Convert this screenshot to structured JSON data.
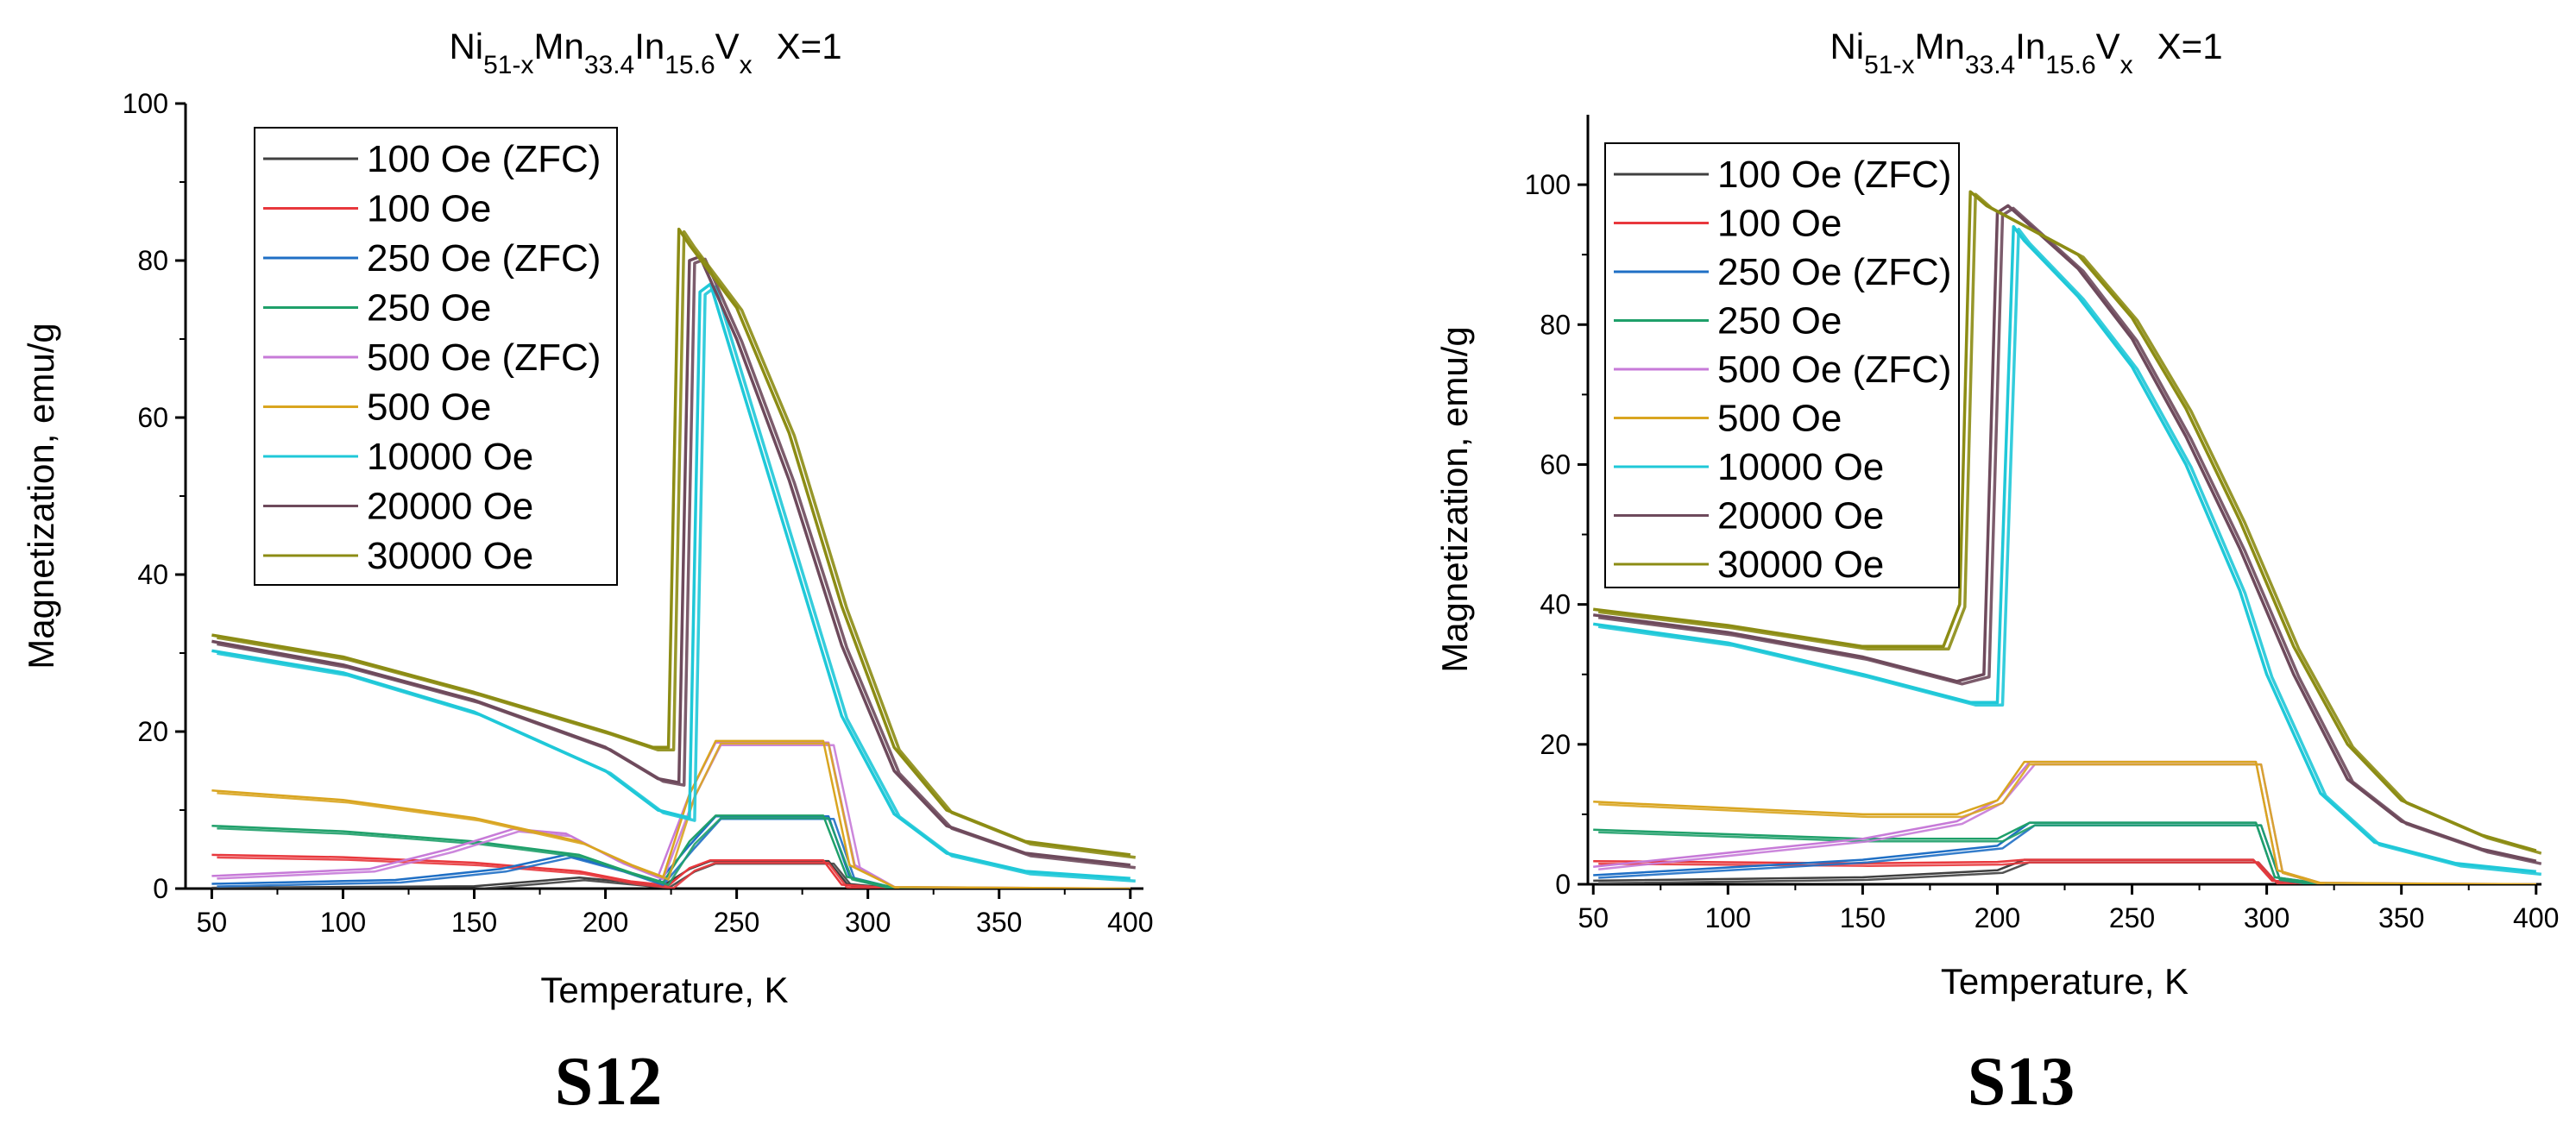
{
  "chart_data": [
    {
      "type": "line",
      "panel_label": "S12",
      "title": {
        "base": [
          "Ni",
          "Mn",
          "In",
          "V"
        ],
        "subs": [
          "51-x",
          "33.4",
          "15.6",
          "x"
        ],
        "suffix": "X=1"
      },
      "xlabel": "Temperature, K",
      "ylabel": "Magnetization, emu/g",
      "xlim": [
        40,
        405
      ],
      "ylim": [
        0,
        100
      ],
      "xticks": [
        50,
        100,
        150,
        200,
        250,
        300,
        350,
        400
      ],
      "yticks": [
        0,
        20,
        40,
        60,
        80,
        100
      ],
      "legend_position": "top-left",
      "series": [
        {
          "name": "100 Oe (ZFC)",
          "color": "#404040",
          "points": [
            [
              50,
              0.1
            ],
            [
              150,
              0.3
            ],
            [
              190,
              1.4
            ],
            [
              210,
              0.8
            ],
            [
              222,
              0.4
            ],
            [
              232,
              2.5
            ],
            [
              240,
              3.5
            ],
            [
              285,
              3.5
            ],
            [
              292,
              0.6
            ],
            [
              310,
              0.05
            ],
            [
              400,
              0
            ]
          ]
        },
        {
          "name": "100 Oe",
          "color": "#e8383d",
          "points": [
            [
              50,
              4.3
            ],
            [
              100,
              4.0
            ],
            [
              150,
              3.3
            ],
            [
              190,
              2.2
            ],
            [
              210,
              0.9
            ],
            [
              224,
              0.4
            ],
            [
              232,
              2.6
            ],
            [
              240,
              3.6
            ],
            [
              283,
              3.6
            ],
            [
              290,
              0.5
            ],
            [
              310,
              0.05
            ],
            [
              400,
              0
            ]
          ]
        },
        {
          "name": "250 Oe (ZFC)",
          "color": "#1f6fc5",
          "points": [
            [
              50,
              0.6
            ],
            [
              120,
              1.1
            ],
            [
              160,
              2.5
            ],
            [
              185,
              4.3
            ],
            [
              205,
              2.5
            ],
            [
              220,
              0.8
            ],
            [
              232,
              5.5
            ],
            [
              242,
              9.2
            ],
            [
              285,
              9.2
            ],
            [
              293,
              1.5
            ],
            [
              310,
              0.1
            ],
            [
              400,
              0
            ]
          ]
        },
        {
          "name": "250 Oe",
          "color": "#1fa06a",
          "points": [
            [
              50,
              8.0
            ],
            [
              100,
              7.3
            ],
            [
              150,
              6.0
            ],
            [
              190,
              4.3
            ],
            [
              210,
              2.0
            ],
            [
              222,
              0.8
            ],
            [
              232,
              6.0
            ],
            [
              242,
              9.3
            ],
            [
              283,
              9.3
            ],
            [
              292,
              1.5
            ],
            [
              310,
              0.1
            ],
            [
              400,
              0
            ]
          ]
        },
        {
          "name": "500 Oe (ZFC)",
          "color": "#c77ad8",
          "points": [
            [
              50,
              1.6
            ],
            [
              110,
              2.5
            ],
            [
              140,
              5.0
            ],
            [
              165,
              7.6
            ],
            [
              185,
              7.0
            ],
            [
              205,
              3.5
            ],
            [
              220,
              1.5
            ],
            [
              232,
              12
            ],
            [
              242,
              18.6
            ],
            [
              285,
              18.6
            ],
            [
              295,
              3.0
            ],
            [
              310,
              0.2
            ],
            [
              400,
              0
            ]
          ]
        },
        {
          "name": "500 Oe",
          "color": "#d9a520",
          "points": [
            [
              50,
              12.5
            ],
            [
              100,
              11.3
            ],
            [
              150,
              9.0
            ],
            [
              190,
              6.0
            ],
            [
              210,
              3.0
            ],
            [
              222,
              1.5
            ],
            [
              232,
              12
            ],
            [
              242,
              18.8
            ],
            [
              283,
              18.8
            ],
            [
              293,
              3.0
            ],
            [
              310,
              0.2
            ],
            [
              400,
              0
            ]
          ]
        },
        {
          "name": "10000 Oe",
          "color": "#1fc8d8",
          "points": [
            [
              50,
              30.3
            ],
            [
              100,
              27.5
            ],
            [
              150,
              22.5
            ],
            [
              200,
              15.0
            ],
            [
              220,
              10.0
            ],
            [
              232,
              9.0
            ],
            [
              236,
              76
            ],
            [
              240,
              77
            ],
            [
              250,
              66
            ],
            [
              270,
              44
            ],
            [
              290,
              22
            ],
            [
              310,
              9.5
            ],
            [
              330,
              4.5
            ],
            [
              360,
              2.2
            ],
            [
              400,
              1.3
            ]
          ]
        },
        {
          "name": "20000 Oe",
          "color": "#6e4a5c",
          "points": [
            [
              50,
              31.5
            ],
            [
              100,
              28.5
            ],
            [
              150,
              24.0
            ],
            [
              200,
              18.0
            ],
            [
              220,
              14.0
            ],
            [
              228,
              13.5
            ],
            [
              232,
              80
            ],
            [
              236,
              80.5
            ],
            [
              250,
              70
            ],
            [
              270,
              52
            ],
            [
              290,
              31
            ],
            [
              310,
              15
            ],
            [
              330,
              8
            ],
            [
              360,
              4.5
            ],
            [
              400,
              3.0
            ]
          ]
        },
        {
          "name": "30000 Oe",
          "color": "#8c8c14",
          "points": [
            [
              50,
              32.3
            ],
            [
              100,
              29.5
            ],
            [
              150,
              25.0
            ],
            [
              200,
              20.0
            ],
            [
              218,
              18.0
            ],
            [
              224,
              18.0
            ],
            [
              228,
              84
            ],
            [
              232,
              82
            ],
            [
              250,
              74
            ],
            [
              270,
              58
            ],
            [
              290,
              36
            ],
            [
              310,
              18
            ],
            [
              330,
              10
            ],
            [
              360,
              6
            ],
            [
              400,
              4.3
            ]
          ]
        }
      ]
    },
    {
      "type": "line",
      "panel_label": "S13",
      "title": {
        "base": [
          "Ni",
          "Mn",
          "In",
          "V"
        ],
        "subs": [
          "51-x",
          "33.4",
          "15.6",
          "x"
        ],
        "suffix": "X=1"
      },
      "xlabel": "Temperature, K",
      "ylabel": "Magnetization, emu/g",
      "xlim": [
        48,
        402
      ],
      "ylim": [
        0,
        110
      ],
      "xticks": [
        50,
        100,
        150,
        200,
        250,
        300,
        350,
        400
      ],
      "yticks": [
        0,
        20,
        40,
        60,
        80,
        100
      ],
      "legend_position": "top-left",
      "series": [
        {
          "name": "100 Oe (ZFC)",
          "color": "#404040",
          "points": [
            [
              50,
              0.5
            ],
            [
              150,
              1.0
            ],
            [
              200,
              2.0
            ],
            [
              210,
              3.5
            ],
            [
              295,
              3.5
            ],
            [
              302,
              0.5
            ],
            [
              320,
              0.05
            ],
            [
              400,
              0
            ]
          ]
        },
        {
          "name": "100 Oe",
          "color": "#e8383d",
          "points": [
            [
              50,
              3.3
            ],
            [
              150,
              3.0
            ],
            [
              200,
              3.2
            ],
            [
              210,
              3.5
            ],
            [
              295,
              3.5
            ],
            [
              302,
              0.5
            ],
            [
              320,
              0.05
            ],
            [
              400,
              0
            ]
          ]
        },
        {
          "name": "250 Oe (ZFC)",
          "color": "#1f6fc5",
          "points": [
            [
              50,
              1.3
            ],
            [
              150,
              3.5
            ],
            [
              200,
              5.5
            ],
            [
              212,
              8.8
            ],
            [
              296,
              8.8
            ],
            [
              303,
              1.0
            ],
            [
              320,
              0.1
            ],
            [
              400,
              0
            ]
          ]
        },
        {
          "name": "250 Oe",
          "color": "#1fa06a",
          "points": [
            [
              50,
              7.8
            ],
            [
              150,
              6.5
            ],
            [
              200,
              6.5
            ],
            [
              212,
              8.8
            ],
            [
              296,
              8.8
            ],
            [
              303,
              1.0
            ],
            [
              320,
              0.1
            ],
            [
              400,
              0
            ]
          ]
        },
        {
          "name": "500 Oe (ZFC)",
          "color": "#c77ad8",
          "points": [
            [
              50,
              2.5
            ],
            [
              150,
              6.5
            ],
            [
              185,
              9.0
            ],
            [
              200,
              12
            ],
            [
              212,
              17.5
            ],
            [
              296,
              17.5
            ],
            [
              304,
              2.0
            ],
            [
              320,
              0.2
            ],
            [
              400,
              0
            ]
          ]
        },
        {
          "name": "500 Oe",
          "color": "#d9a520",
          "points": [
            [
              50,
              11.8
            ],
            [
              150,
              10.0
            ],
            [
              185,
              10.0
            ],
            [
              200,
              12
            ],
            [
              210,
              17.5
            ],
            [
              296,
              17.5
            ],
            [
              304,
              2.0
            ],
            [
              320,
              0.2
            ],
            [
              400,
              0
            ]
          ]
        },
        {
          "name": "10000 Oe",
          "color": "#1fc8d8",
          "points": [
            [
              50,
              37.2
            ],
            [
              100,
              34.5
            ],
            [
              150,
              30.0
            ],
            [
              190,
              26.0
            ],
            [
              200,
              26.0
            ],
            [
              206,
              94
            ],
            [
              210,
              92
            ],
            [
              230,
              84
            ],
            [
              250,
              74
            ],
            [
              270,
              60
            ],
            [
              290,
              42
            ],
            [
              300,
              30
            ],
            [
              320,
              13
            ],
            [
              340,
              6
            ],
            [
              370,
              3
            ],
            [
              400,
              1.8
            ]
          ]
        },
        {
          "name": "20000 Oe",
          "color": "#6e4a5c",
          "points": [
            [
              50,
              38.5
            ],
            [
              100,
              36.0
            ],
            [
              150,
              32.5
            ],
            [
              185,
              29.0
            ],
            [
              195,
              30.0
            ],
            [
              200,
              96
            ],
            [
              204,
              97
            ],
            [
              230,
              88
            ],
            [
              250,
              78
            ],
            [
              270,
              64
            ],
            [
              290,
              48
            ],
            [
              310,
              30
            ],
            [
              330,
              15
            ],
            [
              350,
              9
            ],
            [
              380,
              5
            ],
            [
              400,
              3.3
            ]
          ]
        },
        {
          "name": "30000 Oe",
          "color": "#8c8c14",
          "points": [
            [
              50,
              39.3
            ],
            [
              100,
              37.0
            ],
            [
              150,
              34.0
            ],
            [
              180,
              34.0
            ],
            [
              186,
              40
            ],
            [
              190,
              99
            ],
            [
              196,
              97
            ],
            [
              230,
              90
            ],
            [
              250,
              81
            ],
            [
              270,
              68
            ],
            [
              290,
              52
            ],
            [
              310,
              34
            ],
            [
              330,
              20
            ],
            [
              350,
              12
            ],
            [
              380,
              7
            ],
            [
              400,
              4.8
            ]
          ]
        }
      ]
    }
  ]
}
